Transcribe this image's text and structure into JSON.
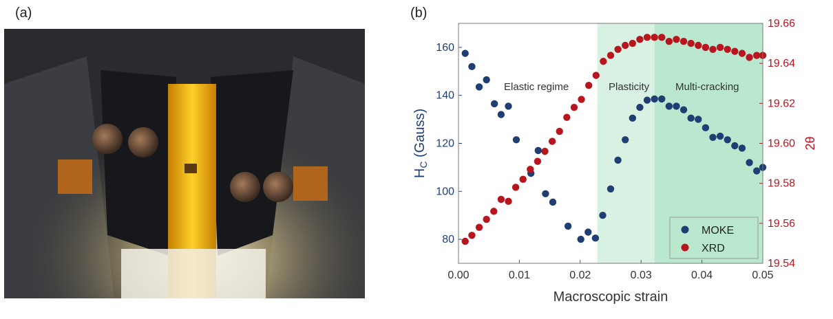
{
  "figure": {
    "panel_a_label": "(a)",
    "panel_b_label": "(b)"
  },
  "photo": {
    "icon": "photograph-of-tensile-stage-with-sample"
  },
  "chart_data": {
    "type": "scatter",
    "xlabel": "Macroscopic strain",
    "ylabel_left_main": "H",
    "ylabel_left_sub": "C",
    "ylabel_left_rest": " (Gauss)",
    "ylabel_right": "2θ",
    "xlim": [
      0.0,
      0.05
    ],
    "ylim_left": [
      70,
      170
    ],
    "ylim_right": [
      19.54,
      19.66
    ],
    "x_ticks": [
      0.0,
      0.01,
      0.02,
      0.03,
      0.04,
      0.05
    ],
    "x_tick_labels": [
      "0.00",
      "0.01",
      "0.02",
      "0.03",
      "0.04",
      "0.05"
    ],
    "y_left_ticks": [
      80,
      100,
      120,
      140,
      160
    ],
    "y_left_tick_labels": [
      "80",
      "100",
      "120",
      "140",
      "160"
    ],
    "y_right_ticks": [
      19.54,
      19.56,
      19.58,
      19.6,
      19.62,
      19.64,
      19.66
    ],
    "y_right_tick_labels": [
      "19.54",
      "19.56",
      "19.58",
      "19.60",
      "19.62",
      "19.64",
      "19.66"
    ],
    "grid": false,
    "legend_position": "bottom-right",
    "regions": [
      {
        "label": "Elastic regime",
        "x_start": 0.0,
        "x_end": 0.0228,
        "color": "#ffffff"
      },
      {
        "label": "Plasticity",
        "x_start": 0.0228,
        "x_end": 0.0322,
        "color": "#d8f1e3"
      },
      {
        "label": "Multi-cracking",
        "x_start": 0.0322,
        "x_end": 0.05,
        "color": "#b9e8cf"
      }
    ],
    "series": [
      {
        "name": "MOKE",
        "axis": "left",
        "color": "#1f3f73",
        "x": [
          0.0011,
          0.0022,
          0.0034,
          0.0046,
          0.0059,
          0.007,
          0.0082,
          0.0095,
          0.0119,
          0.0131,
          0.0143,
          0.0155,
          0.018,
          0.0201,
          0.0213,
          0.0225,
          0.0237,
          0.025,
          0.0262,
          0.0274,
          0.0286,
          0.0298,
          0.031,
          0.0322,
          0.0334,
          0.0346,
          0.0358,
          0.037,
          0.0382,
          0.0394,
          0.0406,
          0.0418,
          0.043,
          0.0442,
          0.0454,
          0.0466,
          0.0478,
          0.049,
          0.05
        ],
        "values": [
          157.5,
          152.0,
          143.5,
          146.5,
          136.5,
          132.0,
          135.5,
          121.5,
          107.5,
          117.0,
          99.0,
          95.5,
          85.5,
          80.0,
          83.0,
          80.5,
          90.0,
          101.0,
          113.0,
          121.5,
          130.5,
          135.0,
          138.0,
          138.5,
          138.5,
          135.5,
          135.5,
          134.0,
          130.5,
          130.0,
          126.5,
          122.5,
          123.0,
          121.5,
          119.0,
          118.0,
          112.0,
          108.5,
          110.0
        ]
      },
      {
        "name": "XRD",
        "axis": "right",
        "color": "#b8151f",
        "x": [
          0.0011,
          0.0022,
          0.0034,
          0.0046,
          0.0058,
          0.007,
          0.0082,
          0.0094,
          0.0106,
          0.0118,
          0.013,
          0.0142,
          0.0154,
          0.0166,
          0.0178,
          0.019,
          0.0202,
          0.0214,
          0.0226,
          0.0238,
          0.025,
          0.0262,
          0.0274,
          0.0286,
          0.0298,
          0.031,
          0.0322,
          0.0334,
          0.0346,
          0.0358,
          0.037,
          0.0382,
          0.0394,
          0.0406,
          0.0418,
          0.043,
          0.0442,
          0.0454,
          0.0466,
          0.0478,
          0.049,
          0.05
        ],
        "values": [
          19.551,
          19.554,
          19.558,
          19.562,
          19.566,
          19.572,
          19.571,
          19.578,
          19.582,
          19.587,
          19.591,
          19.596,
          19.601,
          19.606,
          19.613,
          19.618,
          19.622,
          19.629,
          19.634,
          19.641,
          19.644,
          19.647,
          19.649,
          19.65,
          19.652,
          19.653,
          19.653,
          19.653,
          19.651,
          19.652,
          19.651,
          19.65,
          19.649,
          19.648,
          19.647,
          19.648,
          19.647,
          19.646,
          19.645,
          19.643,
          19.644,
          19.644
        ]
      }
    ]
  }
}
